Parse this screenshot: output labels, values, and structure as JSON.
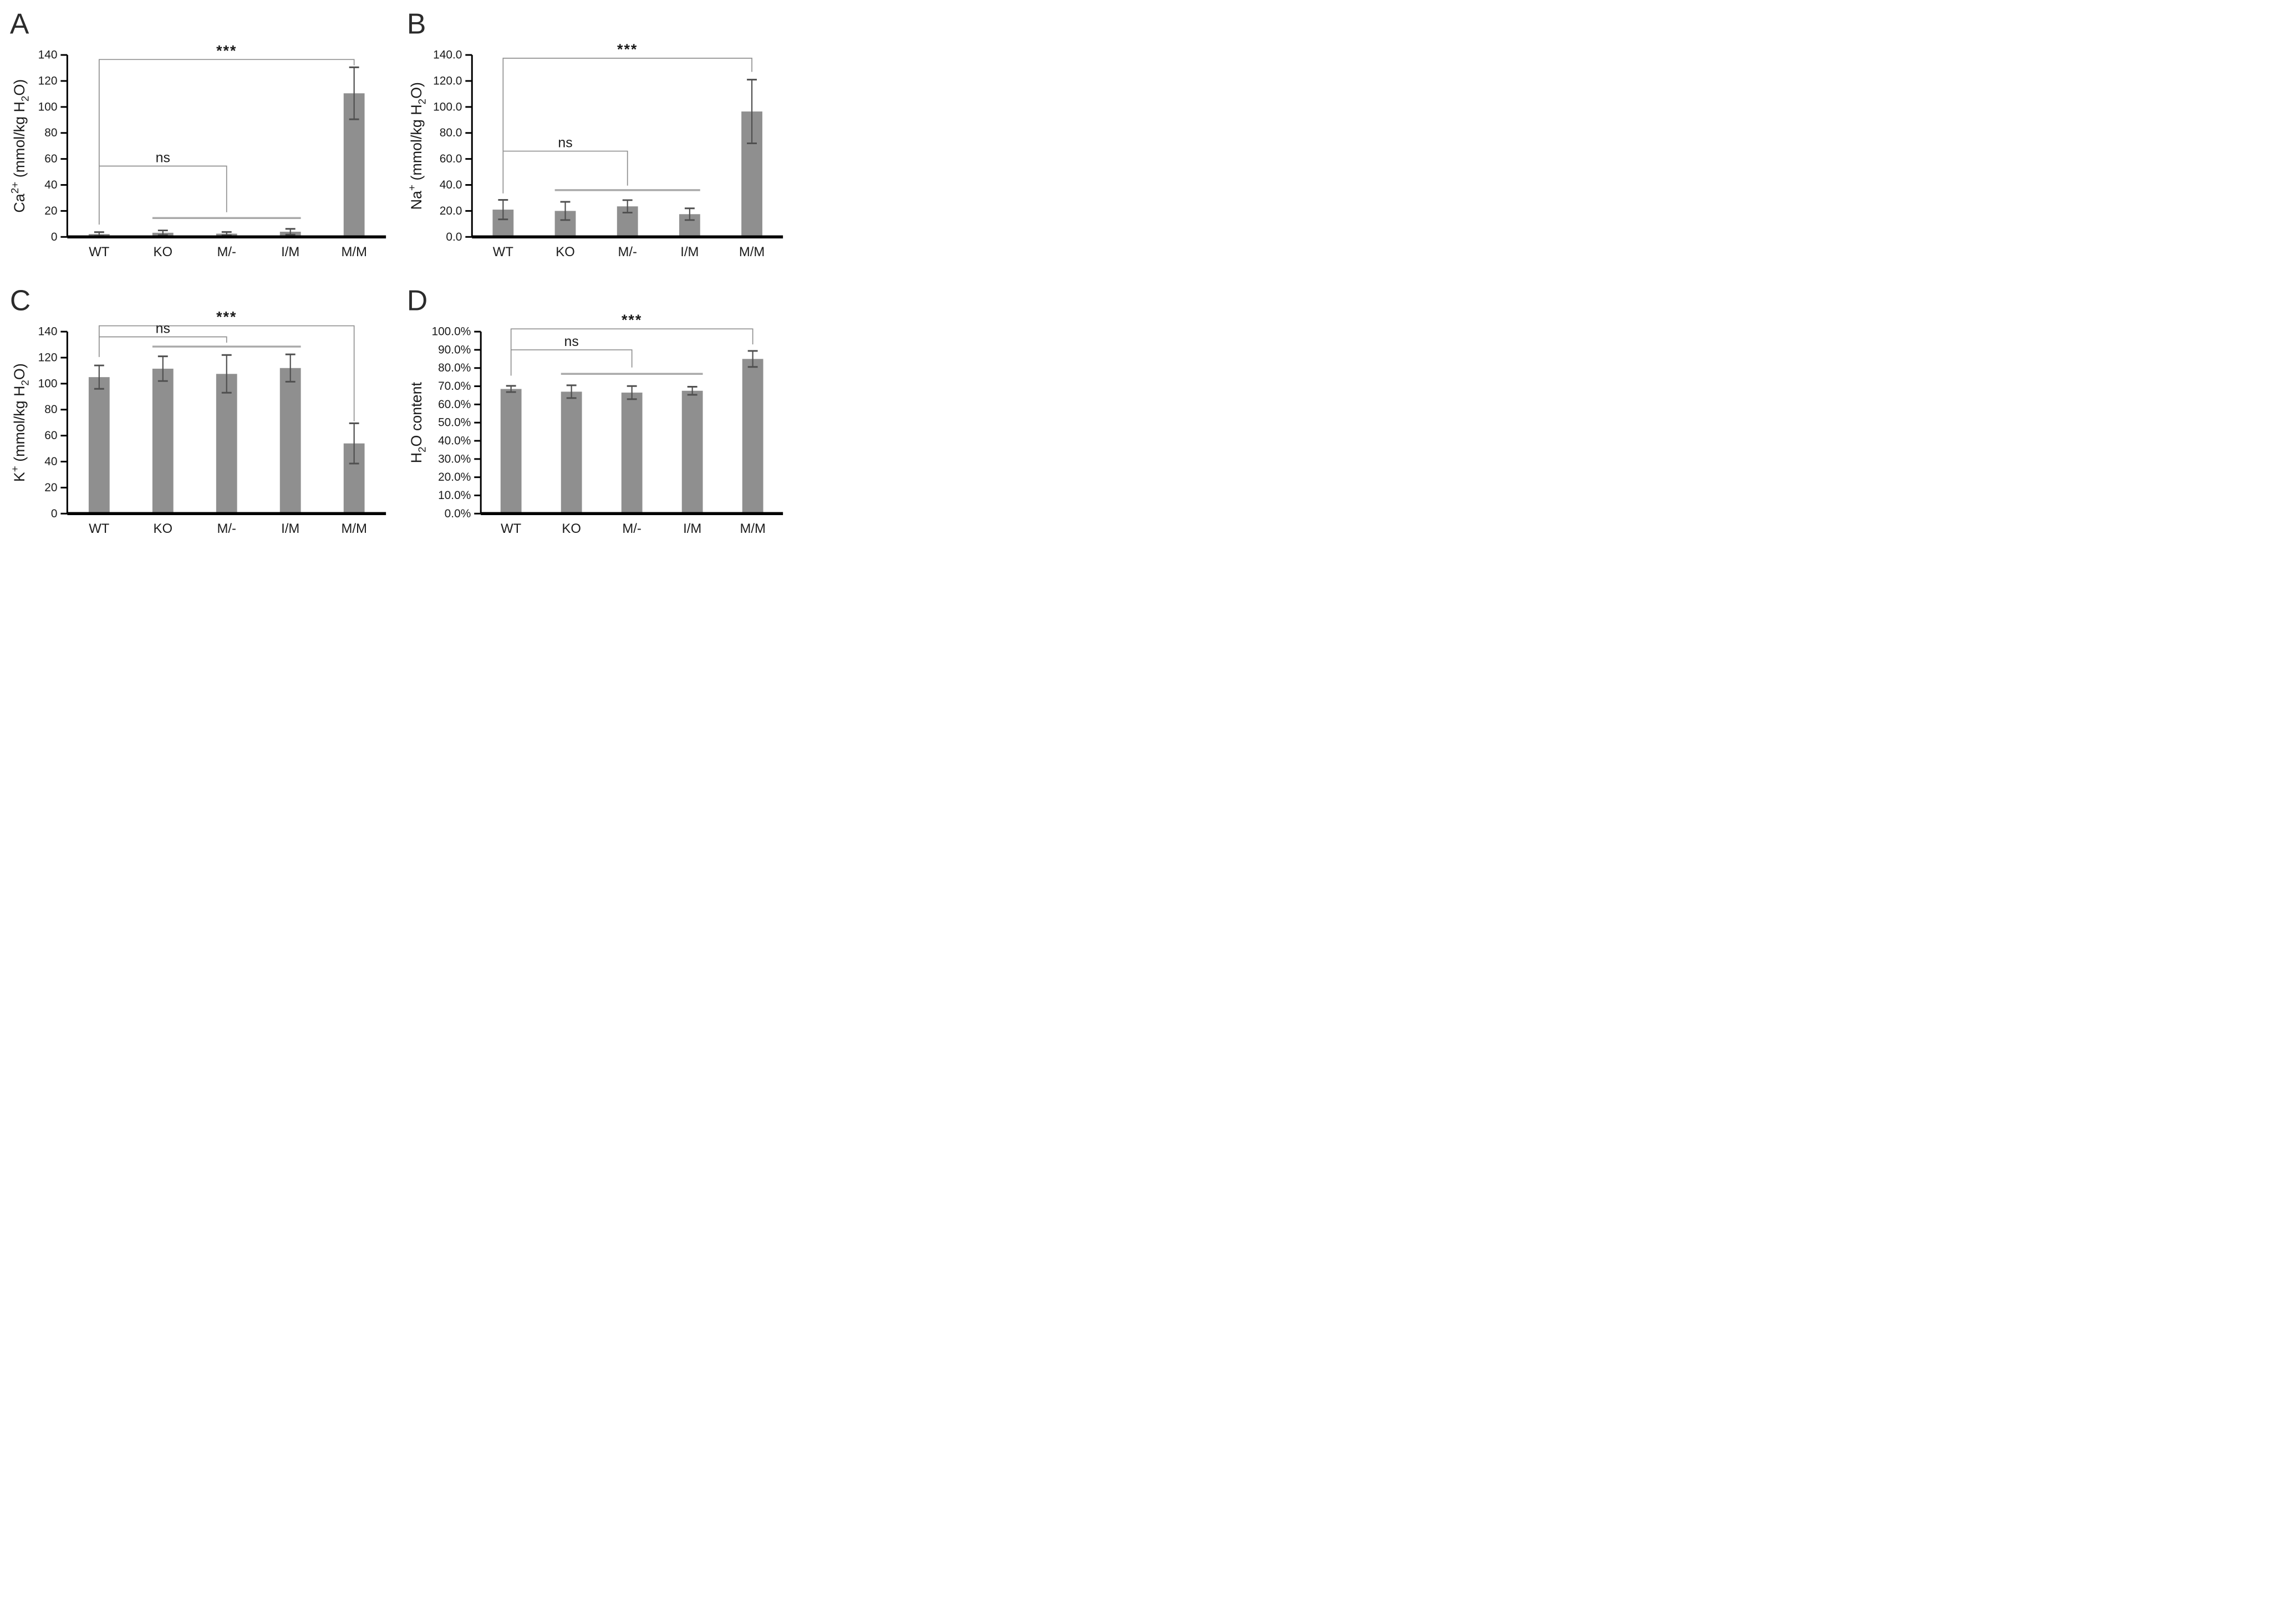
{
  "figure_title": "",
  "colors": {
    "bar_fill": "#8f8f8f",
    "error_bar": "#4f4f4f",
    "bracket_line": "#909090",
    "ns_group_line": "#a9a9a9",
    "axis_line": "#000000",
    "text": "#1a1a1a",
    "panel_letter": "#2b2b2b",
    "background": "#ffffff"
  },
  "chart_data": [
    {
      "panel_letter": "A",
      "type": "bar",
      "ylabel": "Ca2+ (mmol/kg H2O)",
      "ylabel_tokens": [
        {
          "t": "Ca"
        },
        {
          "t": "2+",
          "s": "sup"
        },
        {
          "t": " (mmol/kg H"
        },
        {
          "t": "2",
          "s": "sub"
        },
        {
          "t": "O)"
        }
      ],
      "categories": [
        "WT",
        "KO",
        "M/-",
        "I/M",
        "M/M"
      ],
      "values": [
        2.2,
        3.2,
        2.5,
        4.0,
        110.5
      ],
      "errors": [
        1.5,
        1.8,
        1.3,
        2.2,
        20.0
      ],
      "ylim": [
        0,
        140
      ],
      "yticks": {
        "values": [
          0,
          20,
          40,
          60,
          80,
          100,
          120,
          140
        ],
        "labels": [
          "0",
          "20",
          "40",
          "60",
          "80",
          "100",
          "120",
          "140"
        ]
      },
      "grid": false,
      "brackets": [
        {
          "label": "***",
          "y": 136.5,
          "from": 0,
          "to": 4,
          "drop_from": 9.5,
          "drop_to": 132.0
        },
        {
          "label": "ns",
          "y": 54.5,
          "from": 0,
          "to": 2,
          "drop_from": 54.5,
          "drop_to": 19.0
        }
      ],
      "group_lines": [
        {
          "y": 14.5,
          "from": 1,
          "to": 3
        }
      ],
      "margin_left": 118
    },
    {
      "panel_letter": "B",
      "type": "bar",
      "ylabel": "Na+ (mmol/kg H2O)",
      "ylabel_tokens": [
        {
          "t": "Na"
        },
        {
          "t": "+",
          "s": "sup"
        },
        {
          "t": " (mmol/kg H"
        },
        {
          "t": "2",
          "s": "sub"
        },
        {
          "t": "O)"
        }
      ],
      "categories": [
        "WT",
        "KO",
        "M/-",
        "I/M",
        "M/M"
      ],
      "values": [
        21.0,
        20.0,
        23.5,
        17.5,
        96.5
      ],
      "errors": [
        7.5,
        7.0,
        4.8,
        4.5,
        24.5
      ],
      "ylim": [
        0,
        140
      ],
      "yticks": {
        "values": [
          0,
          20,
          40,
          60,
          80,
          100,
          120,
          140
        ],
        "labels": [
          "0.0",
          "20.0",
          "40.0",
          "60.0",
          "80.0",
          "100.0",
          "120.0",
          "140.0"
        ]
      },
      "grid": false,
      "brackets": [
        {
          "label": "***",
          "y": 137.5,
          "from": 0,
          "to": 4,
          "drop_from": 33.5,
          "drop_to": 127.0
        },
        {
          "label": "ns",
          "y": 66.0,
          "from": 0,
          "to": 2,
          "drop_from": 66.0,
          "drop_to": 39.5
        }
      ],
      "group_lines": [
        {
          "y": 36.0,
          "from": 1,
          "to": 3
        }
      ],
      "margin_left": 132
    },
    {
      "panel_letter": "C",
      "type": "bar",
      "ylabel": "K+ (mmol/kg H2O)",
      "ylabel_tokens": [
        {
          "t": "K"
        },
        {
          "t": "+",
          "s": "sup"
        },
        {
          "t": " (mmol/kg H"
        },
        {
          "t": "2",
          "s": "sub"
        },
        {
          "t": "O)"
        }
      ],
      "categories": [
        "WT",
        "KO",
        "M/-",
        "I/M",
        "M/M"
      ],
      "values": [
        105.0,
        111.5,
        107.5,
        112.0,
        54.0
      ],
      "errors": [
        9.0,
        9.5,
        14.5,
        10.5,
        15.5
      ],
      "ylim": [
        0,
        140
      ],
      "yticks": {
        "values": [
          0,
          20,
          40,
          60,
          80,
          100,
          120,
          140
        ],
        "labels": [
          "0",
          "20",
          "40",
          "60",
          "80",
          "100",
          "120",
          "140"
        ]
      },
      "grid": false,
      "brackets": [
        {
          "label": "***",
          "y": 144.5,
          "from": 0,
          "to": 4,
          "drop_from": 120.5,
          "drop_to": 71.0
        },
        {
          "label": "ns",
          "y": 136.0,
          "from": 0,
          "to": 2,
          "drop_from": 136.0,
          "drop_to": 131.5
        }
      ],
      "group_lines": [
        {
          "y": 128.5,
          "from": 1,
          "to": 3
        }
      ],
      "margin_left": 118
    },
    {
      "panel_letter": "D",
      "type": "bar",
      "ylabel": "H2O content",
      "ylabel_tokens": [
        {
          "t": "H"
        },
        {
          "t": "2",
          "s": "sub"
        },
        {
          "t": "O content"
        }
      ],
      "categories": [
        "WT",
        "KO",
        "M/-",
        "I/M",
        "M/M"
      ],
      "values": [
        68.5,
        67.0,
        66.5,
        67.5,
        85.0
      ],
      "errors": [
        1.7,
        3.5,
        3.6,
        2.2,
        4.4
      ],
      "ylim": [
        0,
        100
      ],
      "yticks": {
        "values": [
          0,
          10,
          20,
          30,
          40,
          50,
          60,
          70,
          80,
          90,
          100
        ],
        "labels": [
          "0.0%",
          "10.0%",
          "20.0%",
          "30.0%",
          "40.0%",
          "50.0%",
          "60.0%",
          "70.0%",
          "80.0%",
          "90.0%",
          "100.0%"
        ]
      },
      "grid": false,
      "brackets": [
        {
          "label": "***",
          "y": 101.5,
          "from": 0,
          "to": 4,
          "drop_from": 75.8,
          "drop_to": 93.0
        },
        {
          "label": "ns",
          "y": 90.0,
          "from": 0,
          "to": 2,
          "drop_from": 90.0,
          "drop_to": 80.3
        }
      ],
      "group_lines": [
        {
          "y": 76.8,
          "from": 1,
          "to": 3
        }
      ],
      "margin_left": 148
    }
  ]
}
